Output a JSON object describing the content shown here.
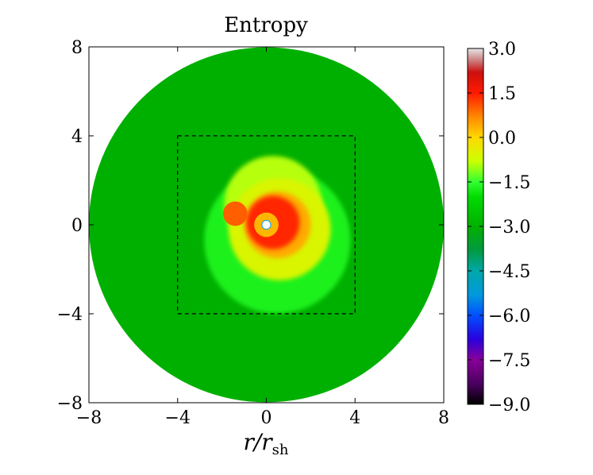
{
  "chart_data": {
    "type": "heatmap",
    "title": "Entropy",
    "xlabel_main": "r/r",
    "xlabel_sub": "sh",
    "ylabel": "",
    "xlim": [
      -8,
      8
    ],
    "ylim": [
      -8,
      8
    ],
    "x_ticks": [
      -8,
      -4,
      0,
      4,
      8
    ],
    "y_ticks": [
      -8,
      -4,
      0,
      4,
      8
    ],
    "x_tick_labels": [
      "−8",
      "−4",
      "0",
      "4",
      "8"
    ],
    "y_tick_labels": [
      "−8",
      "−4",
      "0",
      "4",
      "8"
    ],
    "grid": false,
    "domain_radius": 8,
    "background_value": -3.0,
    "dashed_box": {
      "x": [
        -4,
        4
      ],
      "y": [
        -4,
        4
      ]
    },
    "inner_hole_radius": 0.2,
    "colorbar": {
      "min": -9.0,
      "max": 3.0,
      "ticks": [
        3.0,
        1.5,
        0.0,
        -1.5,
        -3.0,
        -4.5,
        -6.0,
        -7.5,
        -9.0
      ],
      "tick_labels": [
        "3.0",
        "1.5",
        "0.0",
        "−1.5",
        "−3.0",
        "−4.5",
        "−6.0",
        "−7.5",
        "−9.0"
      ],
      "stops": [
        {
          "value": -9.0,
          "color": "#000000"
        },
        {
          "value": -8.3,
          "color": "#4a0060"
        },
        {
          "value": -7.5,
          "color": "#880099"
        },
        {
          "value": -6.8,
          "color": "#2a00dd"
        },
        {
          "value": -6.0,
          "color": "#0050ff"
        },
        {
          "value": -5.3,
          "color": "#0099dd"
        },
        {
          "value": -4.5,
          "color": "#00a8a8"
        },
        {
          "value": -3.8,
          "color": "#009a40"
        },
        {
          "value": -3.0,
          "color": "#00b000"
        },
        {
          "value": -2.0,
          "color": "#00dc00"
        },
        {
          "value": -1.5,
          "color": "#33ff33"
        },
        {
          "value": -0.8,
          "color": "#ccff00"
        },
        {
          "value": 0.0,
          "color": "#ffd800"
        },
        {
          "value": 0.7,
          "color": "#ff8800"
        },
        {
          "value": 1.5,
          "color": "#ff1a00"
        },
        {
          "value": 2.2,
          "color": "#cc1010"
        },
        {
          "value": 2.6,
          "color": "#cc8080"
        },
        {
          "value": 3.0,
          "color": "#e6e6e6"
        }
      ]
    },
    "features": [
      {
        "name": "shocked-bubble-outer",
        "cx": 0.5,
        "cy": -0.7,
        "r": 3.3,
        "value": -1.7
      },
      {
        "name": "shocked-bubble-lobe",
        "cx": 0.3,
        "cy": 0.9,
        "r": 2.2,
        "value": -0.9
      },
      {
        "name": "shocked-bubble-mid",
        "cx": 0.6,
        "cy": -0.2,
        "r": 2.3,
        "value": -0.6
      },
      {
        "name": "shocked-bubble-core",
        "cx": 0.5,
        "cy": 0.0,
        "r": 1.5,
        "value": 0.4
      },
      {
        "name": "hot-ring",
        "cx": 0.3,
        "cy": 0.1,
        "r": 1.2,
        "value": 1.4
      },
      {
        "name": "hot-blob-left",
        "cx": -1.4,
        "cy": 0.5,
        "r": 0.55,
        "value": 1.0
      },
      {
        "name": "inner-core",
        "cx": 0.0,
        "cy": 0.0,
        "r": 0.55,
        "value": 0.3
      }
    ]
  }
}
